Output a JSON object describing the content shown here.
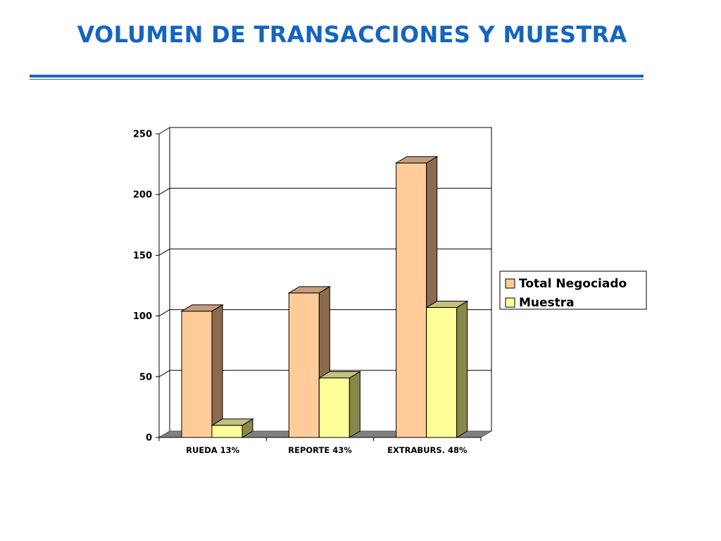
{
  "slide": {
    "title": "VOLUMEN DE TRANSACCIONES Y MUESTRA",
    "accent_color": "#1565c0"
  },
  "chart_data": {
    "type": "bar",
    "style": "3d-clustered-column",
    "categories": [
      "RUEDA 13%",
      "REPORTE 43%",
      "EXTRABURS. 48%"
    ],
    "series": [
      {
        "name": "Total Negociado",
        "values": [
          104,
          119,
          226
        ],
        "color": "#ffcc99",
        "side_color": "#8b6a50",
        "top_color": "#c69c7f"
      },
      {
        "name": "Muestra",
        "values": [
          10,
          49,
          107
        ],
        "color": "#ffff99",
        "side_color": "#88884a",
        "top_color": "#c2c27e"
      }
    ],
    "ylim": [
      0,
      250
    ],
    "yticks": [
      0,
      50,
      100,
      150,
      200,
      250
    ],
    "grid": true,
    "legend_position": "right"
  }
}
